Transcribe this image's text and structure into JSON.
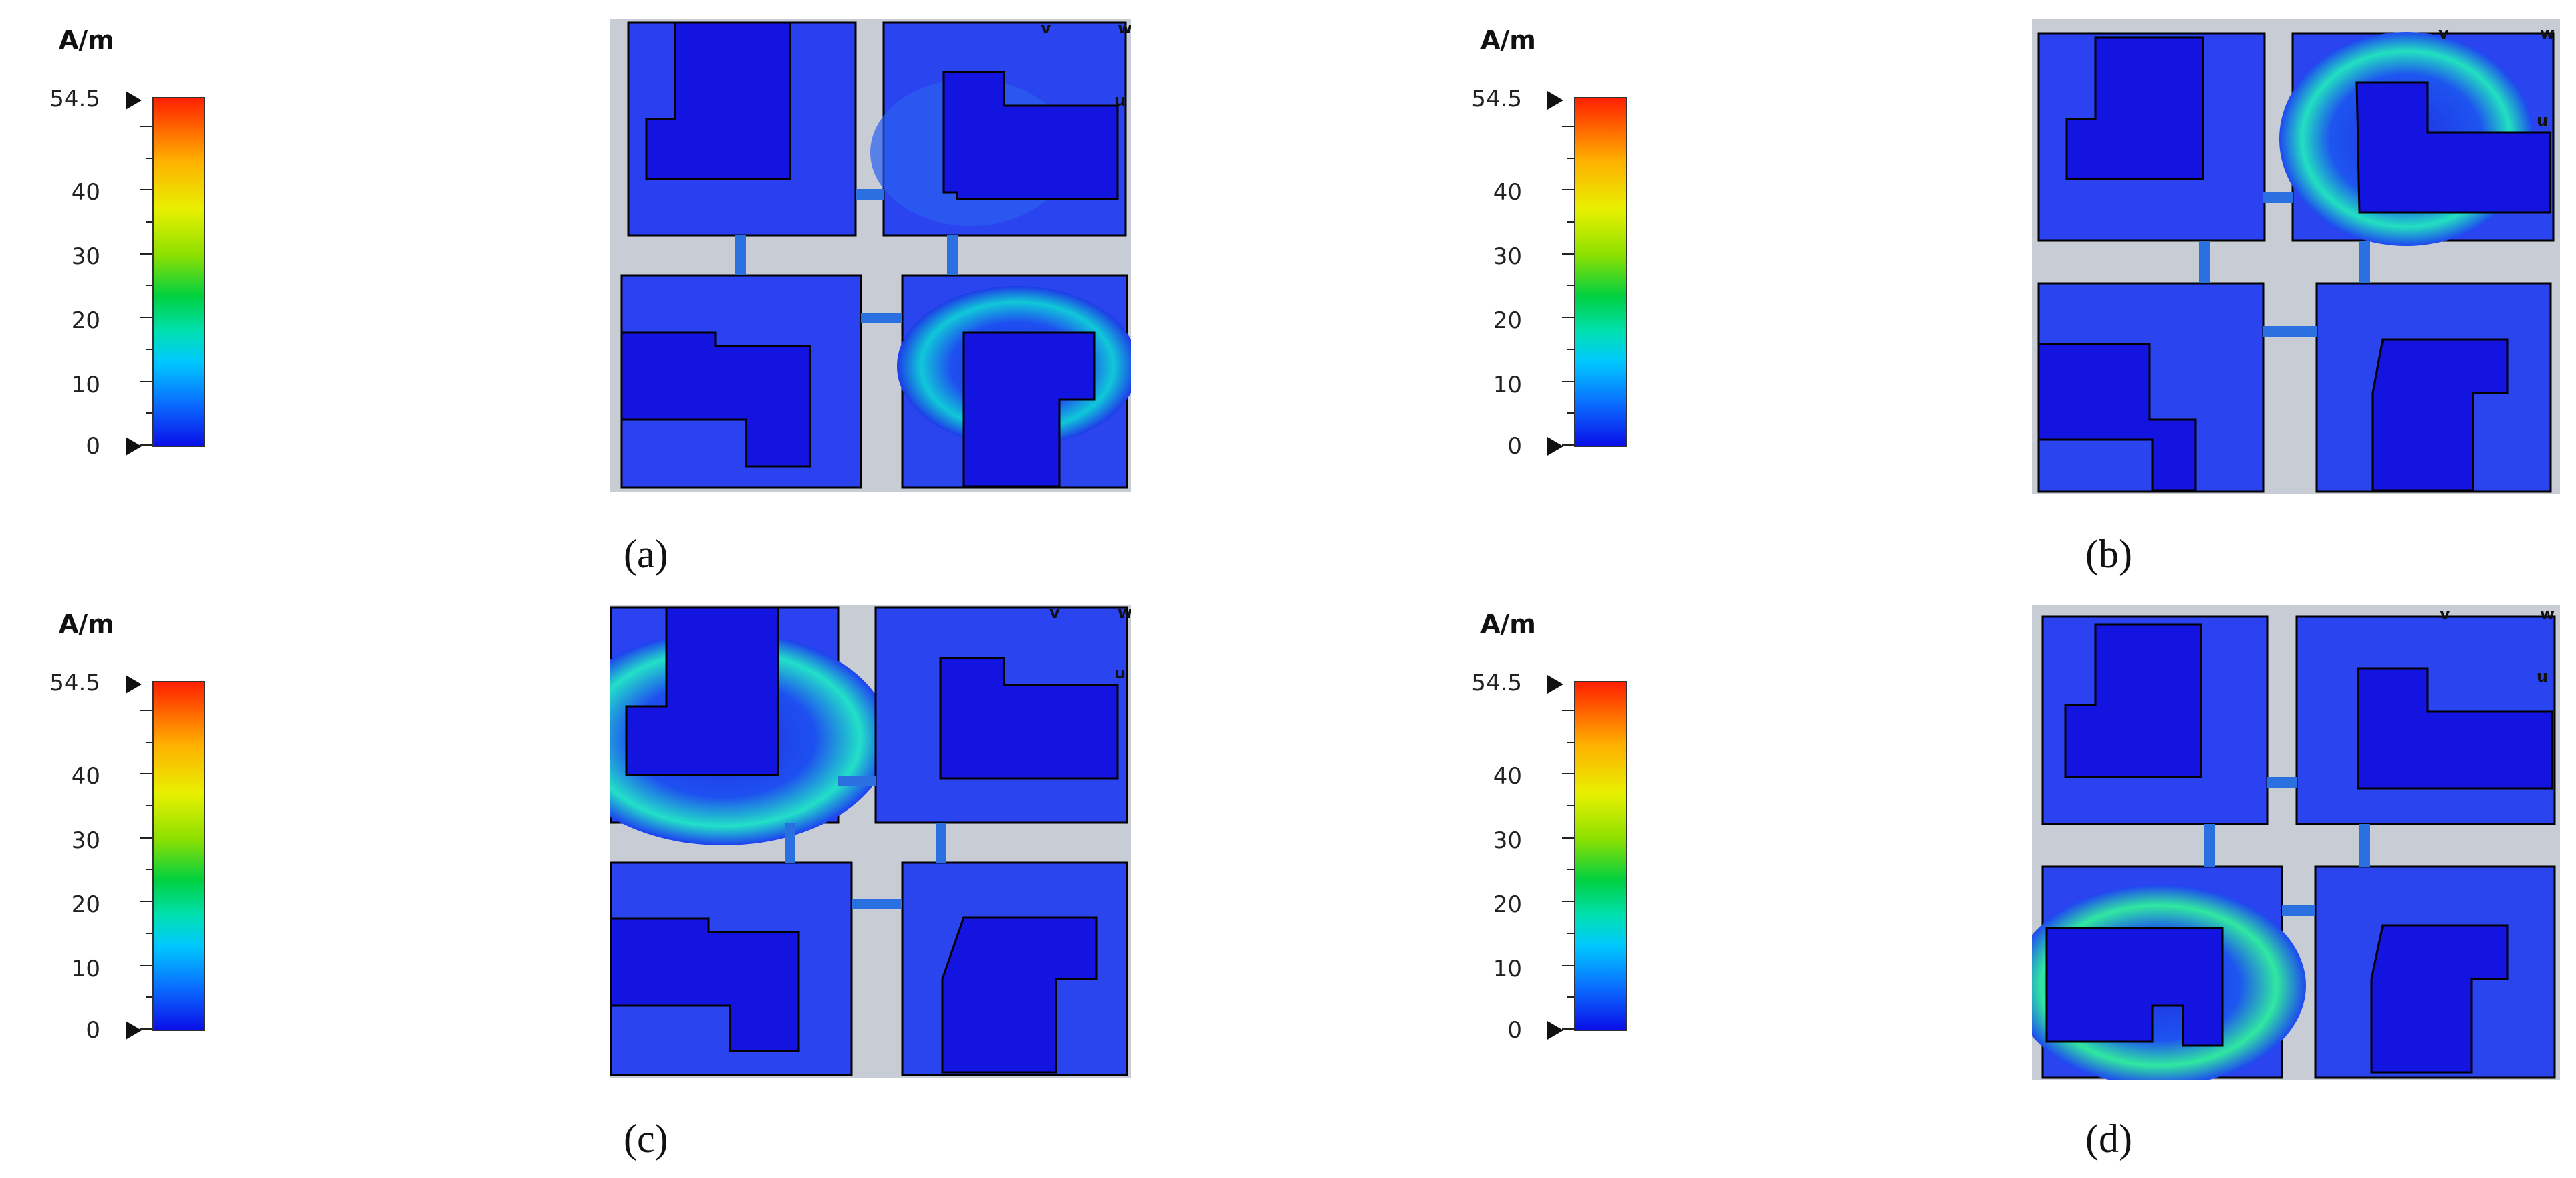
{
  "colorbar": {
    "unit": "A/m",
    "labels": [
      "54.5",
      "40",
      "30",
      "20",
      "10",
      "0"
    ],
    "max": 54.5,
    "min": 0
  },
  "panels": [
    {
      "caption": "(a)",
      "axis_labels": [
        "v",
        "w",
        "u"
      ]
    },
    {
      "caption": "(b)",
      "axis_labels": [
        "v",
        "w",
        "u"
      ]
    },
    {
      "caption": "(c)",
      "axis_labels": [
        "v",
        "w",
        "u"
      ]
    },
    {
      "caption": "(d)",
      "axis_labels": [
        "v",
        "w",
        "u"
      ]
    }
  ],
  "colors": {
    "low": "#1e2fe0",
    "mid": "#00e0c0",
    "high": "#ff2000",
    "gap": "#c8ccd4"
  }
}
